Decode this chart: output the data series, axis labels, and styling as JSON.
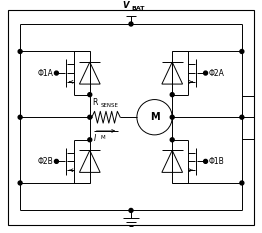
{
  "fig_width": 2.62,
  "fig_height": 2.33,
  "dpi": 100,
  "bg_color": "#ffffff",
  "line_color": "#000000",
  "line_width": 0.7,
  "labels": {
    "vbat": "V",
    "vbat_sub": "BAT",
    "phi1a": "Φ1A",
    "phi2a": "Φ2A",
    "phi2b": "Φ2B",
    "phi1b": "Φ1B",
    "rsense": "R",
    "rsense_sub": "SENSE",
    "im": "I",
    "im_sub": "M",
    "motor": "M"
  }
}
